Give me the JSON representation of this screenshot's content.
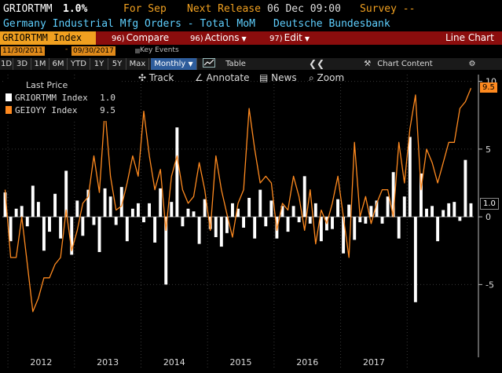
{
  "header": {
    "ticker": "GRIORTMM",
    "value": "1.0%",
    "for_label": "For Sep",
    "next_release_label": "Next Release",
    "next_release_time": "06 Dec 09:00",
    "survey_label": "Survey --",
    "description": "Germany Industrial Mfg Orders - Total MoM",
    "source": "Deutsche Bundesbank"
  },
  "command_bar": {
    "security": "GRIORTMM Index",
    "menus": [
      {
        "num": "96)",
        "label": "Compare"
      },
      {
        "num": "96)",
        "label": "Actions"
      },
      {
        "num": "97)",
        "label": "Edit"
      }
    ],
    "chart_type": "Line Chart"
  },
  "date_range": {
    "start": "11/30/2011",
    "end": "09/30/2017",
    "key_events": "Key Events"
  },
  "range_toolbar": {
    "buttons": [
      "1D",
      "3D",
      "1M",
      "6M",
      "YTD",
      "1Y",
      "5Y",
      "Max"
    ],
    "frequency": "Monthly",
    "table": "Table",
    "chart_content": "Chart Content"
  },
  "chart_toolbar": {
    "track": "Track",
    "annotate": "Annotate",
    "news": "News",
    "zoom": "Zoom"
  },
  "legend": {
    "title": "Last Price",
    "items": [
      {
        "name": "GRIORTMM Index",
        "value": "1.0",
        "color": "#ffffff"
      },
      {
        "name": "GEIOYY Index",
        "value": "9.5",
        "color": "#ff8a1f"
      }
    ]
  },
  "colors": {
    "accent_orange": "#f0a020",
    "bar_red": "#8b0d0d",
    "header_blue": "#5fd0ff",
    "series_orange": "#ff8a1f"
  },
  "chart_data": {
    "type": "bar+line",
    "x_labels": [
      "2012",
      "2013",
      "2014",
      "2015",
      "2016",
      "2017"
    ],
    "y_ticks": [
      -5,
      0,
      5,
      10
    ],
    "ylim": [
      -9.5,
      10.5
    ],
    "last_badges": {
      "bar": "1.0",
      "line": "9.5"
    },
    "series": [
      {
        "name": "GRIORTMM Index",
        "type": "bar",
        "values": [
          1.8,
          -1.8,
          0.6,
          0.8,
          -0.7,
          2.3,
          1.1,
          -2.5,
          -1.1,
          1.7,
          -1.6,
          3.4,
          -2.8,
          1.2,
          -1.4,
          2.0,
          -0.6,
          -2.6,
          2.1,
          1.5,
          -0.6,
          2.2,
          -1.8,
          0.6,
          1.0,
          -0.4,
          1.0,
          -1.9,
          2.1,
          -5.0,
          1.1,
          6.6,
          -0.7,
          0.6,
          0.4,
          -2.0,
          1.3,
          -0.9,
          -1.5,
          -2.2,
          -1.2,
          1.0,
          0.6,
          -0.8,
          1.4,
          -1.6,
          2.0,
          -0.7,
          1.2,
          -1.6,
          0.8,
          -1.1,
          0.8,
          -0.4,
          3.0,
          -0.5,
          1.0,
          -1.8,
          -1.0,
          -0.9,
          1.3,
          -2.7,
          0.9,
          -1.7,
          -0.4,
          -0.5,
          0.8,
          1.2,
          -0.5,
          1.5,
          3.3,
          -1.6,
          1.5,
          5.9,
          -6.3,
          3.2,
          0.6,
          0.8,
          -1.8,
          0.5,
          1.0,
          1.1,
          -0.3,
          4.2,
          1.0
        ]
      },
      {
        "name": "GEIOYY Index",
        "type": "line",
        "values": [
          2.0,
          -3.0,
          -3.0,
          0.0,
          -3.5,
          -7.0,
          -6.0,
          -4.5,
          -4.5,
          -3.5,
          -3.0,
          0.5,
          -2.5,
          -1.0,
          1.0,
          1.5,
          4.5,
          1.8,
          8.0,
          3.0,
          0.5,
          0.8,
          2.5,
          4.5,
          3.0,
          7.8,
          4.5,
          2.0,
          3.5,
          -1.0,
          3.0,
          4.5,
          2.0,
          1.0,
          1.5,
          4.0,
          2.0,
          -1.0,
          4.5,
          2.0,
          0.2,
          -1.5,
          1.0,
          2.0,
          8.0,
          5.0,
          2.5,
          3.0,
          2.5,
          -1.0,
          1.0,
          0.5,
          3.0,
          1.5,
          -1.0,
          2.0,
          -2.0,
          0.5,
          -0.5,
          1.0,
          3.0,
          0.0,
          -3.0,
          5.5,
          0.0,
          1.5,
          -0.5,
          1.0,
          2.0,
          2.0,
          0.0,
          5.5,
          2.5,
          6.5,
          9.0,
          2.0,
          5.0,
          4.0,
          2.5,
          4.0,
          5.5,
          5.5,
          8.0,
          8.5,
          9.5
        ]
      }
    ]
  }
}
